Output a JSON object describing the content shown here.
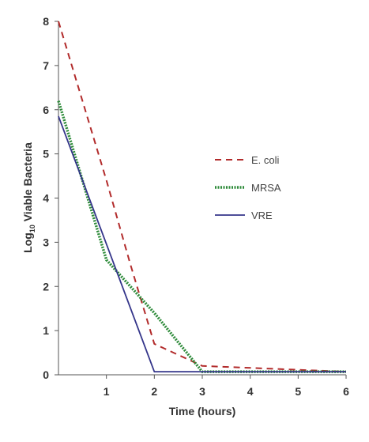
{
  "chart_data": {
    "type": "line",
    "xlabel": "Time (hours)",
    "ylabel_main": "Log",
    "ylabel_sub": "10",
    "ylabel_rest": " Viable Bacteria",
    "xlim": [
      0,
      6
    ],
    "ylim": [
      0,
      8
    ],
    "x_ticks": [
      "1",
      "2",
      "3",
      "4",
      "5",
      "6"
    ],
    "y_ticks": [
      "0",
      "1",
      "2",
      "3",
      "4",
      "5",
      "6",
      "7",
      "8"
    ],
    "grid": false,
    "legend_position": "right",
    "series": [
      {
        "name": "E. coli",
        "color": "#b22b2b",
        "style": "dashed",
        "x": [
          0,
          1,
          1.5,
          2,
          3,
          6
        ],
        "y": [
          8.0,
          4.4,
          2.5,
          0.7,
          0.2,
          0.07
        ]
      },
      {
        "name": "MRSA",
        "color": "#2e8b3a",
        "style": "dotted",
        "x": [
          0,
          1,
          2,
          3,
          6
        ],
        "y": [
          6.2,
          2.6,
          1.4,
          0.07,
          0.07
        ]
      },
      {
        "name": "VRE",
        "color": "#34358a",
        "style": "solid",
        "x": [
          0,
          2,
          6
        ],
        "y": [
          5.85,
          0.07,
          0.07
        ]
      }
    ]
  }
}
